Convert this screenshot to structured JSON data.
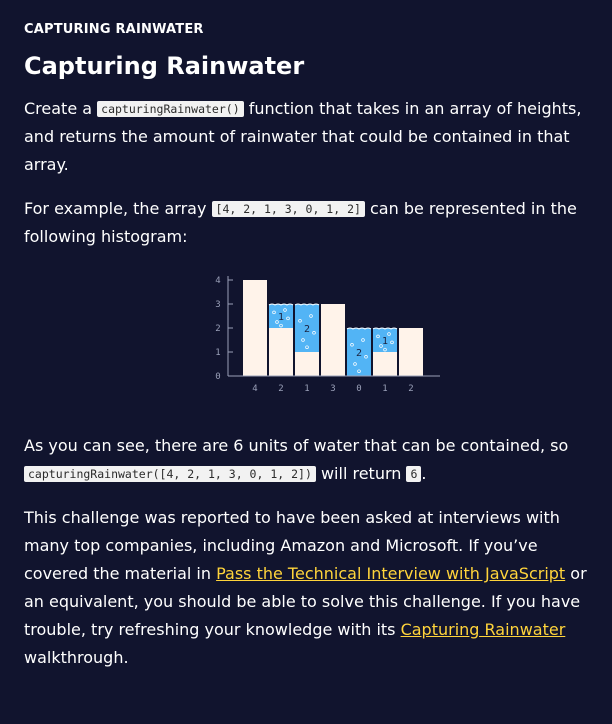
{
  "header": {
    "eyebrow": "CAPTURING RAINWATER",
    "title": "Capturing Rainwater"
  },
  "intro": {
    "part1": "Create a ",
    "code": "capturingRainwater()",
    "part2": " function that takes in an array of heights, and returns the amount of rainwater that could be contained in that array."
  },
  "example": {
    "part1": "For example, the array ",
    "code": "[4, 2, 1, 3, 0, 1, 2]",
    "part2": " can be represented in the following histogram:"
  },
  "result": {
    "part1": "As you can see, there are 6 units of water that can be contained, so ",
    "code_call": "capturingRainwater([4, 2, 1, 3, 0, 1, 2])",
    "part2": " will return ",
    "code_value": "6",
    "part3": "."
  },
  "challenge": {
    "part1": "This challenge was reported to have been asked at interviews with many top companies, including Amazon and Microsoft. If you’ve covered the material in ",
    "link1": "Pass the Technical Interview with JavaScript",
    "part2": " or an equivalent, you should be able to solve this challenge. If you have trouble, try refreshing your knowledge with its ",
    "link2": "Capturing Rainwater",
    "part3": " walkthrough."
  },
  "colors": {
    "background": "#11142e",
    "bar": "#fff3ea",
    "water": "#52b4f5",
    "link": "#ffd43b"
  },
  "chart_data": {
    "type": "bar",
    "categories": [
      "4",
      "2",
      "1",
      "3",
      "0",
      "1",
      "2"
    ],
    "heights": [
      4,
      2,
      1,
      3,
      0,
      1,
      2
    ],
    "water": [
      0,
      1,
      2,
      0,
      2,
      1,
      0
    ],
    "water_labels": [
      "",
      "1",
      "2",
      "",
      "2",
      "1",
      ""
    ],
    "y_ticks": [
      "0",
      "1",
      "2",
      "3",
      "4"
    ],
    "ylim": [
      0,
      4
    ],
    "total_water": 6
  }
}
